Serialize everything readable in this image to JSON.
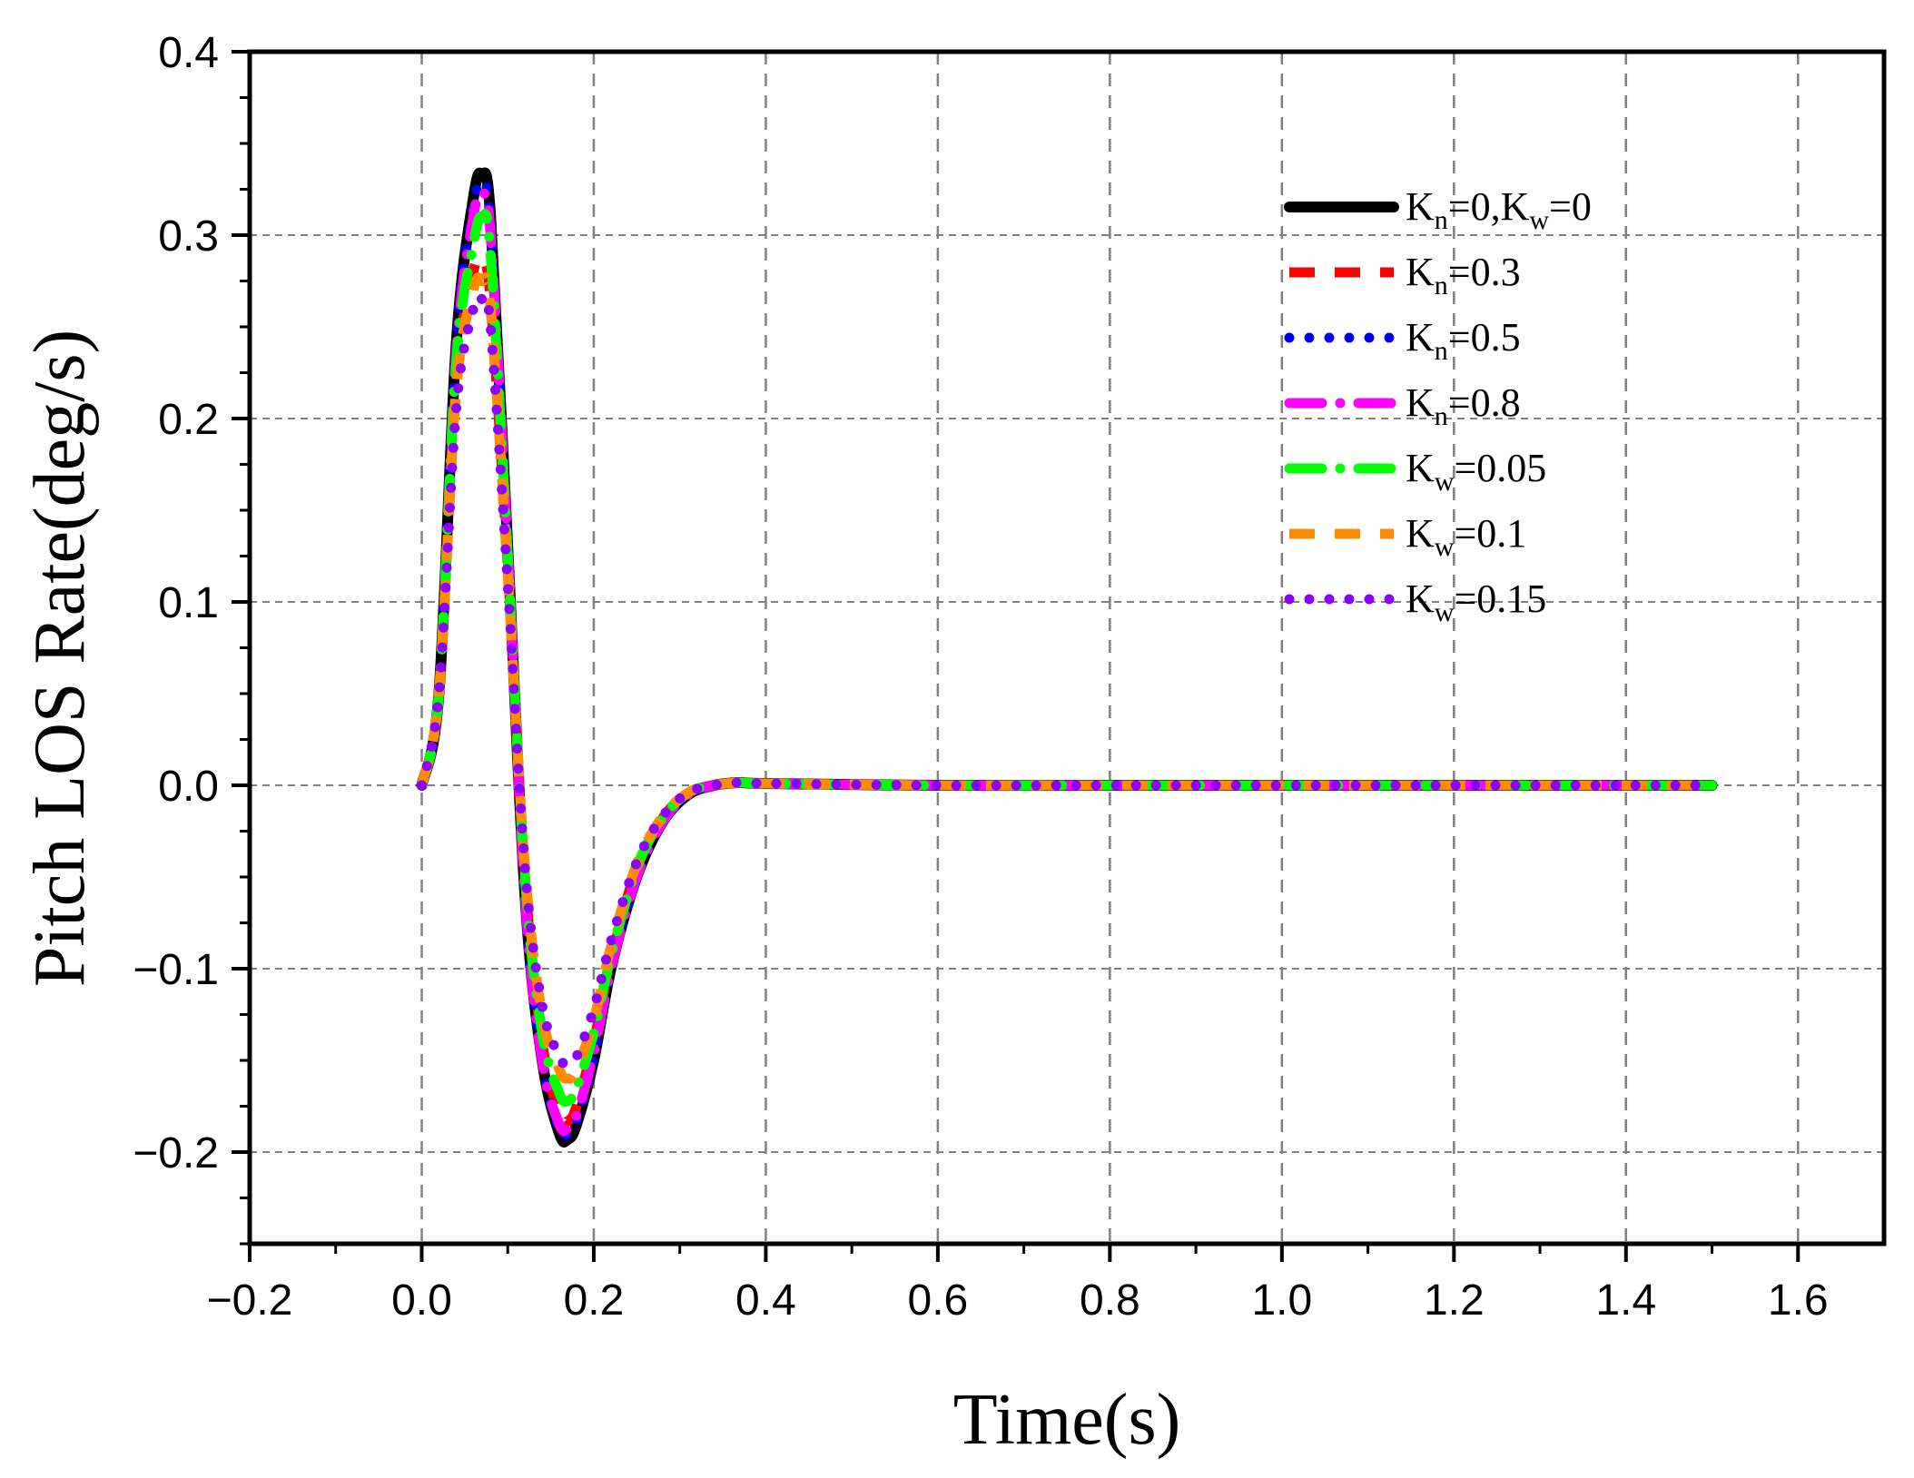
{
  "chart_data": {
    "type": "line",
    "title": "",
    "xlabel": "Time(s)",
    "ylabel": "Pitch LOS Rate(deg/s)",
    "xlim": [
      -0.2,
      1.7
    ],
    "ylim": [
      -0.25,
      0.4
    ],
    "xticks": [
      -0.2,
      0.0,
      0.2,
      0.4,
      0.6,
      0.8,
      1.0,
      1.2,
      1.4,
      1.6
    ],
    "xtick_labels": [
      "−0.2",
      "0.0",
      "0.2",
      "0.4",
      "0.6",
      "0.8",
      "1.0",
      "1.2",
      "1.4",
      "1.6"
    ],
    "yticks": [
      -0.2,
      -0.1,
      0.0,
      0.1,
      0.2,
      0.3,
      0.4
    ],
    "ytick_labels": [
      "−0.2",
      "−0.1",
      "0.0",
      "0.1",
      "0.2",
      "0.3",
      "0.4"
    ],
    "grid": true,
    "legend_position": "top-right",
    "series": [
      {
        "name": "Kn=0,Kw=0",
        "color": "#000000",
        "style": "solid",
        "label_parts": [
          [
            "K",
            ""
          ],
          [
            "n",
            "sub"
          ],
          [
            "=0,K",
            ""
          ],
          [
            "w",
            "sub"
          ],
          [
            "=0",
            ""
          ]
        ],
        "x": [
          0,
          0.02,
          0.04,
          0.06,
          0.07,
          0.08,
          0.1,
          0.12,
          0.14,
          0.16,
          0.17,
          0.18,
          0.2,
          0.22,
          0.25,
          0.28,
          0.31,
          0.34,
          0.37,
          0.4,
          0.6,
          0.8,
          1.0,
          1.2,
          1.5
        ],
        "y": [
          0,
          0.05,
          0.24,
          0.32,
          0.333,
          0.31,
          0.13,
          -0.06,
          -0.15,
          -0.19,
          -0.193,
          -0.185,
          -0.15,
          -0.1,
          -0.05,
          -0.02,
          -0.005,
          0.0,
          0.0015,
          0.001,
          0,
          0,
          0,
          0,
          0
        ]
      },
      {
        "name": "Kn=0.3",
        "color": "#ff0000",
        "style": "dash",
        "label_parts": [
          [
            "K",
            ""
          ],
          [
            "n",
            "sub"
          ],
          [
            "=0.3",
            ""
          ]
        ],
        "x": [
          0,
          0.02,
          0.04,
          0.06,
          0.07,
          0.08,
          0.1,
          0.12,
          0.14,
          0.16,
          0.17,
          0.18,
          0.2,
          0.22,
          0.25,
          0.28,
          0.31,
          0.34,
          0.37,
          0.4,
          0.6,
          0.8,
          1.0,
          1.2,
          1.5
        ],
        "y": [
          0,
          0.05,
          0.22,
          0.28,
          0.285,
          0.265,
          0.12,
          -0.05,
          -0.14,
          -0.18,
          -0.183,
          -0.175,
          -0.14,
          -0.095,
          -0.045,
          -0.018,
          -0.004,
          0.0,
          0.0015,
          0.001,
          0,
          0,
          0,
          0,
          0
        ]
      },
      {
        "name": "Kn=0.5",
        "color": "#0000ff",
        "style": "dot",
        "label_parts": [
          [
            "K",
            ""
          ],
          [
            "n",
            "sub"
          ],
          [
            "=0.5",
            ""
          ]
        ],
        "x": [
          0,
          0.02,
          0.04,
          0.06,
          0.07,
          0.08,
          0.1,
          0.12,
          0.14,
          0.16,
          0.17,
          0.18,
          0.2,
          0.22,
          0.25,
          0.28,
          0.31,
          0.34,
          0.37,
          0.4,
          0.6,
          0.8,
          1.0,
          1.2,
          1.5
        ],
        "y": [
          0,
          0.05,
          0.24,
          0.315,
          0.328,
          0.305,
          0.13,
          -0.06,
          -0.15,
          -0.188,
          -0.19,
          -0.183,
          -0.148,
          -0.1,
          -0.05,
          -0.02,
          -0.005,
          0.0,
          0.0015,
          0.001,
          0,
          0,
          0,
          0,
          0
        ]
      },
      {
        "name": "Kn=0.8",
        "color": "#ff00ff",
        "style": "dashdot",
        "label_parts": [
          [
            "K",
            ""
          ],
          [
            "n",
            "sub"
          ],
          [
            "=0.8",
            ""
          ]
        ],
        "x": [
          0,
          0.02,
          0.04,
          0.06,
          0.07,
          0.08,
          0.1,
          0.12,
          0.14,
          0.16,
          0.17,
          0.18,
          0.2,
          0.22,
          0.25,
          0.28,
          0.31,
          0.34,
          0.37,
          0.4,
          0.6,
          0.8,
          1.0,
          1.2,
          1.5
        ],
        "y": [
          0,
          0.05,
          0.235,
          0.31,
          0.322,
          0.3,
          0.13,
          -0.06,
          -0.15,
          -0.185,
          -0.187,
          -0.18,
          -0.146,
          -0.1,
          -0.05,
          -0.02,
          -0.005,
          0.0,
          0.0015,
          0.001,
          0,
          0,
          0,
          0,
          0
        ]
      },
      {
        "name": "Kw=0.05",
        "color": "#00ff00",
        "style": "dashdot",
        "label_parts": [
          [
            "K",
            ""
          ],
          [
            "w",
            "sub"
          ],
          [
            "=0.05",
            ""
          ]
        ],
        "x": [
          0,
          0.02,
          0.04,
          0.06,
          0.07,
          0.08,
          0.1,
          0.12,
          0.14,
          0.16,
          0.17,
          0.18,
          0.2,
          0.22,
          0.25,
          0.28,
          0.31,
          0.34,
          0.37,
          0.4,
          0.6,
          0.8,
          1.0,
          1.2,
          1.5
        ],
        "y": [
          0,
          0.05,
          0.23,
          0.295,
          0.31,
          0.29,
          0.125,
          -0.05,
          -0.135,
          -0.168,
          -0.172,
          -0.165,
          -0.135,
          -0.093,
          -0.045,
          -0.018,
          -0.004,
          0.0,
          0.0015,
          0.001,
          0,
          0,
          0,
          0,
          0
        ]
      },
      {
        "name": "Kw=0.1",
        "color": "#ff8c00",
        "style": "dash",
        "label_parts": [
          [
            "K",
            ""
          ],
          [
            "w",
            "sub"
          ],
          [
            "=0.1",
            ""
          ]
        ],
        "x": [
          0,
          0.02,
          0.04,
          0.06,
          0.07,
          0.08,
          0.1,
          0.12,
          0.14,
          0.16,
          0.17,
          0.18,
          0.2,
          0.22,
          0.25,
          0.28,
          0.31,
          0.34,
          0.37,
          0.4,
          0.6,
          0.8,
          1.0,
          1.2,
          1.5
        ],
        "y": [
          0,
          0.05,
          0.215,
          0.27,
          0.275,
          0.26,
          0.115,
          -0.045,
          -0.125,
          -0.155,
          -0.16,
          -0.155,
          -0.128,
          -0.088,
          -0.043,
          -0.017,
          -0.004,
          0.0,
          0.0015,
          0.001,
          0,
          0,
          0,
          0,
          0
        ]
      },
      {
        "name": "Kw=0.15",
        "color": "#8b00ff",
        "style": "dot",
        "label_parts": [
          [
            "K",
            ""
          ],
          [
            "w",
            "sub"
          ],
          [
            "=0.15",
            ""
          ]
        ],
        "x": [
          0,
          0.02,
          0.04,
          0.06,
          0.07,
          0.08,
          0.1,
          0.12,
          0.14,
          0.16,
          0.17,
          0.18,
          0.2,
          0.22,
          0.25,
          0.28,
          0.31,
          0.34,
          0.37,
          0.4,
          0.6,
          0.8,
          1.0,
          1.2,
          1.5
        ],
        "y": [
          0,
          0.05,
          0.205,
          0.26,
          0.265,
          0.25,
          0.11,
          -0.045,
          -0.12,
          -0.148,
          -0.152,
          -0.148,
          -0.122,
          -0.085,
          -0.042,
          -0.017,
          -0.004,
          0.0,
          0.0015,
          0.001,
          0,
          0,
          0,
          0,
          0
        ]
      }
    ]
  }
}
